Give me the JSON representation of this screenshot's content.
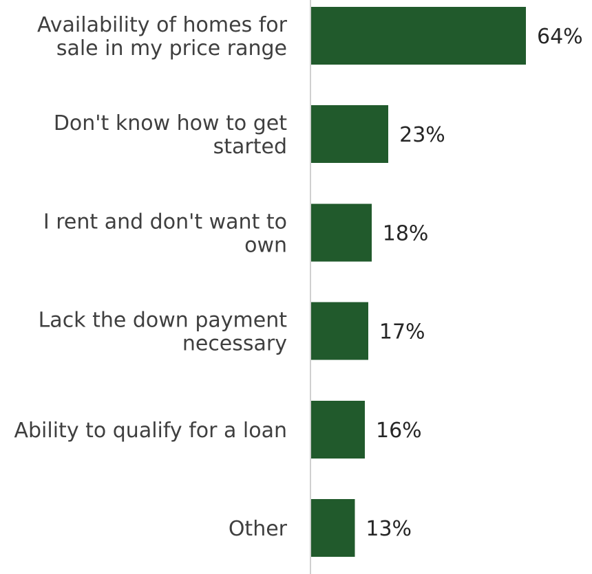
{
  "chart_data": {
    "type": "bar",
    "orientation": "horizontal",
    "title": "",
    "xlabel": "",
    "ylabel": "",
    "xlim": [
      0,
      64
    ],
    "grid": false,
    "legend": "none",
    "bar_color": "#215a2c",
    "axis_color": "#d0d0d0",
    "categories": [
      [
        "Availability of homes for",
        "sale in my price range"
      ],
      [
        "Don't know how to get",
        "started"
      ],
      [
        "I rent and don't want to",
        "own"
      ],
      [
        "Lack the down payment",
        "necessary"
      ],
      [
        "Ability to qualify for a loan"
      ],
      [
        "Other"
      ]
    ],
    "values": [
      64,
      23,
      18,
      17,
      16,
      13
    ],
    "value_labels": [
      "64%",
      "23%",
      "18%",
      "17%",
      "16%",
      "13%"
    ]
  }
}
